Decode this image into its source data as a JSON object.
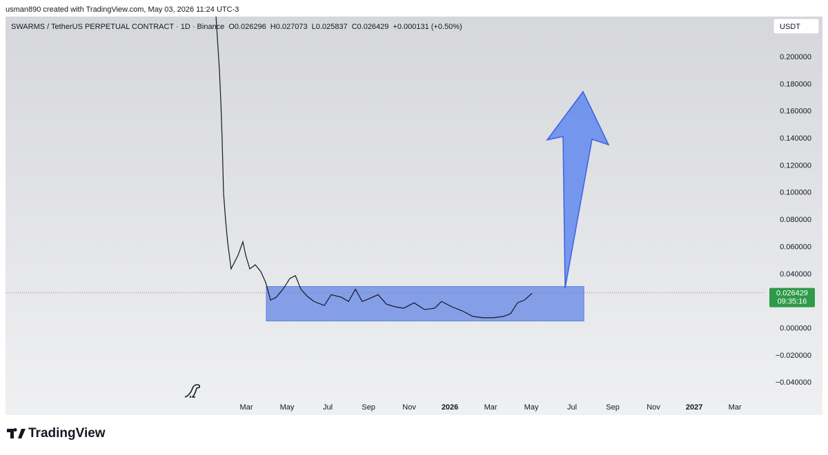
{
  "header": {
    "credit": "usman890 created with TradingView.com, May 03, 2026 11:24 UTC-3"
  },
  "chart_data": {
    "type": "line",
    "title": "SWARMS / TetherUS PERPETUAL CONTRACT · 1D · Binance",
    "ohlc": [
      "O0.026296",
      "H0.027073",
      "L0.025837",
      "C0.026429",
      "+0.000131 (+0.50%)"
    ],
    "currency": "USDT",
    "color": "#131722",
    "x": [
      0.51,
      0.68,
      0.75,
      0.81,
      0.88,
      0.98,
      1.08,
      1.25,
      1.42,
      1.59,
      1.83,
      1.97,
      2.17,
      2.44,
      2.71,
      2.95,
      3.19,
      3.46,
      3.8,
      4.14,
      4.41,
      4.68,
      4.98,
      5.32,
      5.83,
      6.17,
      6.68,
      7.02,
      7.36,
      7.69,
      8.03,
      8.47,
      8.88,
      9.32,
      9.73,
      10.24,
      10.75,
      11.25,
      11.59,
      12.1,
      12.61,
      13.12,
      13.63,
      14.14,
      14.64,
      14.98,
      15.32,
      15.66,
      16.03
    ],
    "values": [
      0.23,
      0.19,
      0.166,
      0.14,
      0.1,
      0.08,
      0.064,
      0.044,
      0.049,
      0.054,
      0.064,
      0.054,
      0.044,
      0.047,
      0.042,
      0.034,
      0.021,
      0.023,
      0.029,
      0.037,
      0.039,
      0.029,
      0.024,
      0.02,
      0.017,
      0.025,
      0.023,
      0.02,
      0.029,
      0.02,
      0.022,
      0.025,
      0.018,
      0.016,
      0.015,
      0.019,
      0.014,
      0.015,
      0.02,
      0.016,
      0.013,
      0.009,
      0.008,
      0.008,
      0.009,
      0.011,
      0.019,
      0.021,
      0.026
    ],
    "last_price": 0.026429,
    "countdown": "09:35:16",
    "range_box": {
      "x": [
        2.98,
        18.58
      ],
      "y": [
        0.0056,
        0.031
      ],
      "color": "#5a7fe6"
    },
    "xlim": [
      -9.83,
      27.42
    ],
    "xticks": [
      {
        "value": 2,
        "label": "Mar"
      },
      {
        "value": 4,
        "label": "May"
      },
      {
        "value": 6,
        "label": "Jul"
      },
      {
        "value": 8,
        "label": "Sep"
      },
      {
        "value": 10,
        "label": "Nov"
      },
      {
        "value": 12,
        "label": "2026"
      },
      {
        "value": 14,
        "label": "Mar"
      },
      {
        "value": 16,
        "label": "May"
      },
      {
        "value": 18,
        "label": "Jul"
      },
      {
        "value": 20,
        "label": "Sep"
      },
      {
        "value": 22,
        "label": "Nov"
      },
      {
        "value": 24,
        "label": "2027"
      },
      {
        "value": 26,
        "label": "Mar"
      }
    ],
    "ylim": [
      -0.05,
      0.23
    ],
    "yticks": [
      {
        "value": -0.04,
        "label": "−0.040000"
      },
      {
        "value": -0.02,
        "label": "−0.020000"
      },
      {
        "value": 0,
        "label": "0.000000"
      },
      {
        "value": 0.02,
        "label": "0.020000"
      },
      {
        "value": 0.04,
        "label": "0.040000"
      },
      {
        "value": 0.06,
        "label": "0.060000"
      },
      {
        "value": 0.08,
        "label": "0.080000"
      },
      {
        "value": 0.1,
        "label": "0.100000"
      },
      {
        "value": 0.12,
        "label": "0.120000"
      },
      {
        "value": 0.14,
        "label": "0.140000"
      },
      {
        "value": 0.16,
        "label": "0.160000"
      },
      {
        "value": 0.18,
        "label": "0.180000"
      },
      {
        "value": 0.2,
        "label": "0.200000"
      }
    ],
    "grid": false
  },
  "footer": {
    "logo": "TradingView"
  }
}
